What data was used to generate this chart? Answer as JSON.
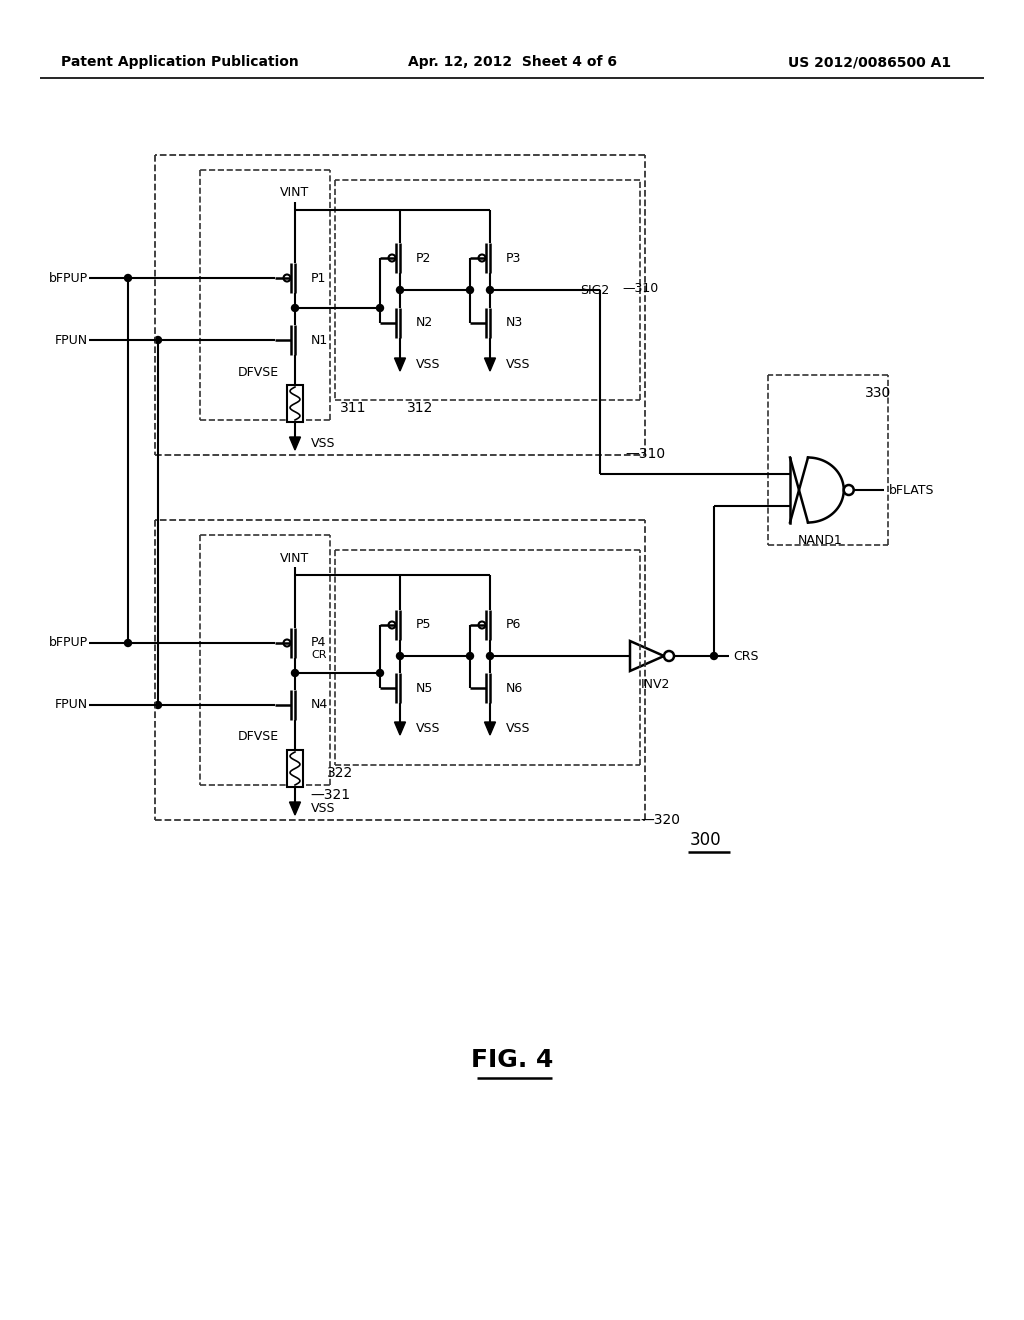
{
  "title_left": "Patent Application Publication",
  "title_center": "Apr. 12, 2012  Sheet 4 of 6",
  "title_right": "US 2012/0086500 A1",
  "fig_label": "FIG. 4",
  "fig_number": "300",
  "bg_color": "#ffffff",
  "line_color": "#000000",
  "dashed_color": "#555555"
}
